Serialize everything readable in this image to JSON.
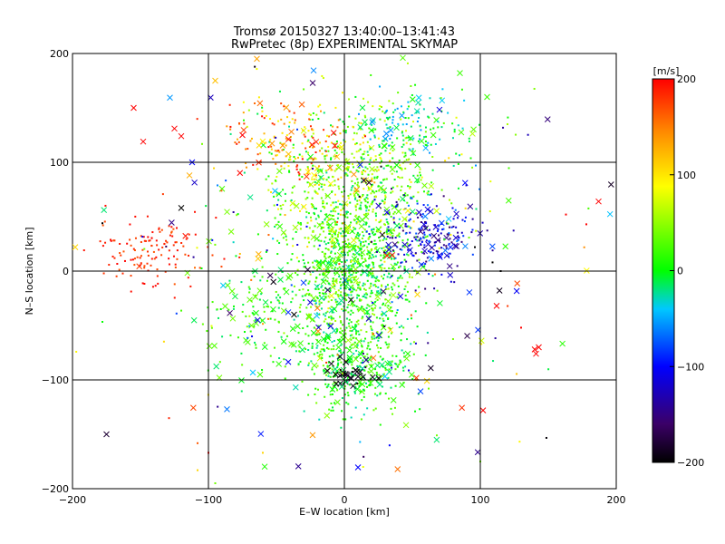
{
  "chart_data": {
    "type": "scatter",
    "title": "Tromsø 20150327 13:40:00–13:41:43",
    "subtitle": "RwPretec (8p) EXPERIMENTAL SKYMAP",
    "xlabel": "E–W location [km]",
    "ylabel": "N–S location [km]",
    "xlim": [
      -200,
      200
    ],
    "ylim": [
      -200,
      200
    ],
    "x_ticks": [
      -200,
      -100,
      0,
      100,
      200
    ],
    "y_ticks": [
      -200,
      -100,
      0,
      100,
      200
    ],
    "grid": true,
    "grid_lines_x": [
      -100,
      0,
      100
    ],
    "grid_lines_y": [
      -100,
      0,
      100
    ],
    "colorbar": {
      "unit_label": "[m/s]",
      "range": [
        -200,
        200
      ],
      "ticks": [
        200,
        100,
        0,
        -100,
        -200
      ],
      "colormap": [
        "#000000",
        "#3b0067",
        "#0000ff",
        "#00c8ff",
        "#00ff00",
        "#ffff00",
        "#ff8c00",
        "#ff0000"
      ]
    },
    "marker_types": [
      "dot",
      "cross"
    ],
    "clusters": [
      {
        "cx": -140,
        "cy": 20,
        "sx": 22,
        "sy": 16,
        "n": 130,
        "vmin": 165,
        "vmax": 200,
        "cross": 0.05
      },
      {
        "cx": 5,
        "cy": 0,
        "sx": 22,
        "sy": 45,
        "n": 1100,
        "vmin": -30,
        "vmax": 60,
        "cross": 0.08
      },
      {
        "cx": 10,
        "cy": 80,
        "sx": 35,
        "sy": 40,
        "n": 600,
        "vmin": -20,
        "vmax": 110,
        "cross": 0.1
      },
      {
        "cx": 50,
        "cy": 130,
        "sx": 20,
        "sy": 15,
        "n": 120,
        "vmin": -60,
        "vmax": 20,
        "cross": 0.15
      },
      {
        "cx": 60,
        "cy": 30,
        "sx": 18,
        "sy": 18,
        "n": 220,
        "vmin": -160,
        "vmax": -60,
        "cross": 0.15
      },
      {
        "cx": 10,
        "cy": -90,
        "sx": 20,
        "sy": 20,
        "n": 260,
        "vmin": -30,
        "vmax": 40,
        "cross": 0.18
      },
      {
        "cx": 5,
        "cy": -95,
        "sx": 8,
        "sy": 5,
        "n": 30,
        "vmin": -200,
        "vmax": -180,
        "cross": 0.7
      },
      {
        "cx": -40,
        "cy": 120,
        "sx": 25,
        "sy": 20,
        "n": 140,
        "vmin": 90,
        "vmax": 200,
        "cross": 0.15
      },
      {
        "cx": -60,
        "cy": -40,
        "sx": 25,
        "sy": 30,
        "n": 140,
        "vmin": -20,
        "vmax": 40,
        "cross": 0.25
      },
      {
        "cx": 0,
        "cy": 0,
        "sx": 90,
        "sy": 90,
        "n": 260,
        "vmin": -200,
        "vmax": 200,
        "cross": 0.45
      }
    ],
    "points": [
      {
        "x": -155,
        "y": 150,
        "v": 200,
        "m": "cross"
      },
      {
        "x": -148,
        "y": 119,
        "v": 200,
        "m": "cross"
      },
      {
        "x": -125,
        "y": 131,
        "v": 200,
        "m": "cross"
      },
      {
        "x": -120,
        "y": 124,
        "v": 200,
        "m": "cross"
      },
      {
        "x": -112,
        "y": 100,
        "v": -100,
        "m": "cross"
      },
      {
        "x": -120,
        "y": 58,
        "v": -200,
        "m": "cross"
      },
      {
        "x": -95,
        "y": 175,
        "v": 120,
        "m": "cross"
      },
      {
        "x": -175,
        "y": -150,
        "v": -180,
        "m": "cross"
      },
      {
        "x": -92,
        "y": -98,
        "v": 40,
        "m": "cross"
      },
      {
        "x": -75,
        "y": 125,
        "v": 200,
        "m": "cross"
      },
      {
        "x": 140,
        "y": -72,
        "v": 200,
        "m": "cross"
      },
      {
        "x": 141,
        "y": -76,
        "v": 200,
        "m": "cross"
      },
      {
        "x": 143,
        "y": -70,
        "v": 200,
        "m": "cross"
      },
      {
        "x": 112,
        "y": -32,
        "v": 200,
        "m": "cross"
      },
      {
        "x": 102,
        "y": -128,
        "v": 200,
        "m": "cross"
      },
      {
        "x": 187,
        "y": 64,
        "v": 200,
        "m": "cross"
      },
      {
        "x": 85,
        "y": 182,
        "v": 20,
        "m": "cross"
      },
      {
        "x": 105,
        "y": 160,
        "v": 20,
        "m": "cross"
      },
      {
        "x": 43,
        "y": 196,
        "v": 30,
        "m": "cross"
      },
      {
        "x": 130,
        "y": -52,
        "v": 200,
        "m": "dot"
      },
      {
        "x": 163,
        "y": 52,
        "v": 200,
        "m": "dot"
      },
      {
        "x": 178,
        "y": 43,
        "v": 200,
        "m": "dot"
      },
      {
        "x": 115,
        "y": 0,
        "v": -200,
        "m": "dot"
      },
      {
        "x": 109,
        "y": 8,
        "v": -200,
        "m": "dot"
      },
      {
        "x": 96,
        "y": 22,
        "v": -200,
        "m": "dot"
      },
      {
        "x": -178,
        "y": 44,
        "v": -200,
        "m": "dot"
      },
      {
        "x": -198,
        "y": 22,
        "v": 110,
        "m": "cross"
      },
      {
        "x": -60,
        "y": -167,
        "v": 110,
        "m": "dot"
      },
      {
        "x": -108,
        "y": -183,
        "v": 110,
        "m": "dot"
      },
      {
        "x": -100,
        "y": -167,
        "v": 200,
        "m": "dot"
      },
      {
        "x": -95,
        "y": -195,
        "v": 40,
        "m": "dot"
      },
      {
        "x": 100,
        "y": -175,
        "v": 40,
        "m": "dot"
      },
      {
        "x": 120,
        "y": 135,
        "v": 60,
        "m": "dot"
      },
      {
        "x": 68,
        "y": -151,
        "v": 40,
        "m": "dot"
      },
      {
        "x": 62,
        "y": -108,
        "v": 40,
        "m": "dot"
      }
    ]
  }
}
